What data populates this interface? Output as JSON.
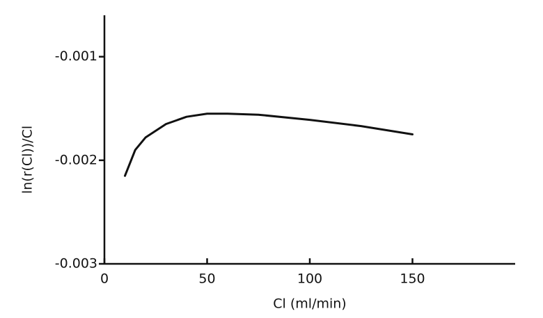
{
  "chart_data": {
    "type": "line",
    "x_label": "Cl (ml/min)",
    "y_label": "ln(r(Cl))/Cl",
    "xlim": [
      0,
      200
    ],
    "xticks": [
      0,
      50,
      100,
      150
    ],
    "ylim": [
      -0.003,
      -0.0006
    ],
    "yticks": [
      -0.003,
      -0.002,
      -0.001
    ],
    "grid": false,
    "series": [
      {
        "color": "#111111",
        "x": [
          10,
          15,
          20,
          30,
          40,
          50,
          60,
          75,
          100,
          125,
          150
        ],
        "values": [
          -0.00215,
          -0.0019,
          -0.00178,
          -0.00165,
          -0.00158,
          -0.00155,
          -0.00155,
          -0.00156,
          -0.00161,
          -0.00167,
          -0.00175
        ]
      }
    ]
  }
}
